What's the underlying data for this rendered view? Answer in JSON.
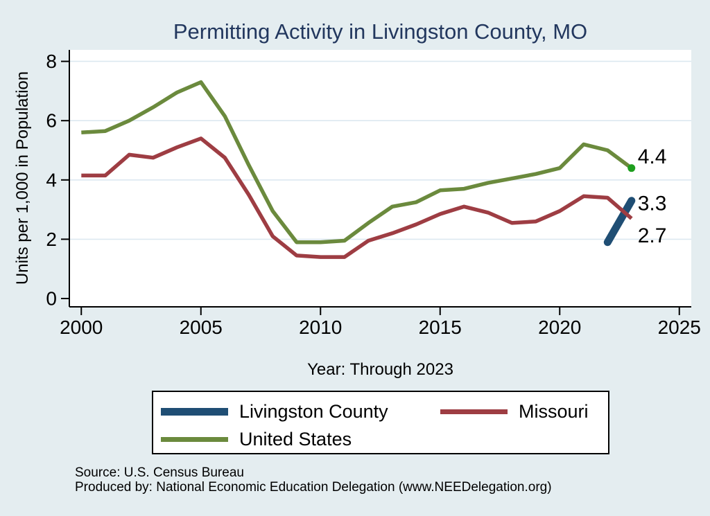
{
  "footer": {
    "source": "Source: U.S. Census Bureau",
    "produced_by": "Produced by: National Economic Education Delegation (www.NEEDelegation.org)"
  },
  "colors": {
    "background": "#e4edf0",
    "plot_background": "#ffffff",
    "gridline": "#dce8f0",
    "axis": "#000000",
    "title_text": "#22375e",
    "label_text": "#000000"
  },
  "chart_data": {
    "type": "line",
    "title": "Permitting Activity in Livingston County, MO",
    "xlabel": "Year: Through 2023",
    "ylabel": "Units per 1,000 in Population",
    "xlim": [
      1999.5,
      2025.5
    ],
    "ylim": [
      0,
      8
    ],
    "x_ticks": [
      2000,
      2005,
      2010,
      2015,
      2020,
      2025
    ],
    "y_ticks": [
      0,
      2,
      4,
      6,
      8
    ],
    "grid": "horizontal-only",
    "legend_position": "bottom",
    "years": [
      2000,
      2001,
      2002,
      2003,
      2004,
      2005,
      2006,
      2007,
      2008,
      2009,
      2010,
      2011,
      2012,
      2013,
      2014,
      2015,
      2016,
      2017,
      2018,
      2019,
      2020,
      2021,
      2022,
      2023
    ],
    "series": [
      {
        "name": "Livingston County",
        "color": "#1f4e74",
        "line_width": 11,
        "swatch_height": 11,
        "line_cap": "round",
        "x": [
          2022,
          2023
        ],
        "values": [
          1.9,
          3.3
        ],
        "end_label": {
          "text": "3.3",
          "offset_y": 4
        }
      },
      {
        "name": "Missouri",
        "color": "#9e3d43",
        "line_width": 5.5,
        "swatch_height": 7,
        "line_cap": "butt",
        "values": [
          4.15,
          4.15,
          4.85,
          4.75,
          5.1,
          5.4,
          4.75,
          3.5,
          2.1,
          1.45,
          1.4,
          1.4,
          1.95,
          2.2,
          2.5,
          2.85,
          3.1,
          2.9,
          2.55,
          2.6,
          2.95,
          3.45,
          3.4,
          2.7
        ],
        "end_label": {
          "text": "2.7",
          "offset_y": 25
        }
      },
      {
        "name": "United States",
        "color": "#6b8a3d",
        "line_width": 5.5,
        "swatch_height": 7,
        "line_cap": "butt",
        "values": [
          5.6,
          5.65,
          6.0,
          6.45,
          6.95,
          7.3,
          6.15,
          4.5,
          2.95,
          1.9,
          1.9,
          1.95,
          2.55,
          3.1,
          3.25,
          3.65,
          3.7,
          3.9,
          4.05,
          4.2,
          4.4,
          5.2,
          5.0,
          4.4
        ],
        "end_label": {
          "text": "4.4",
          "offset_y": -16
        },
        "end_marker": {
          "color": "#1e9e1e",
          "radius": 5.5
        }
      }
    ]
  }
}
